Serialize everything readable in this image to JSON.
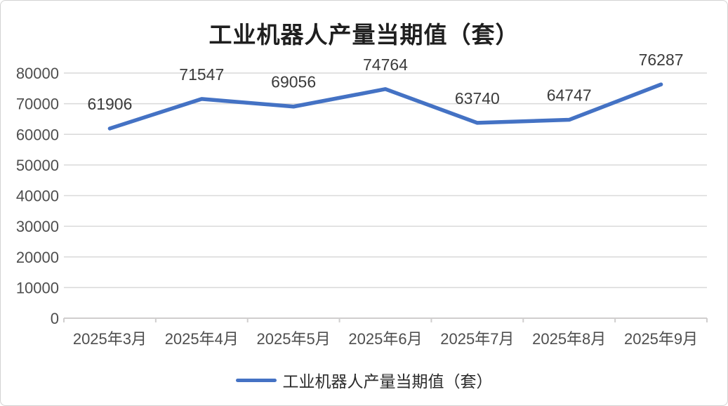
{
  "chart_data": {
    "type": "line",
    "title": "工业机器人产量当期值（套）",
    "categories": [
      "2025年3月",
      "2025年4月",
      "2025年5月",
      "2025年6月",
      "2025年7月",
      "2025年8月",
      "2025年9月"
    ],
    "series": [
      {
        "name": "工业机器人产量当期值（套）",
        "values": [
          61906,
          71547,
          69056,
          74764,
          63740,
          64747,
          76287
        ]
      }
    ],
    "data_labels": [
      "61906",
      "71547",
      "69056",
      "74764",
      "63740",
      "64747",
      "76287"
    ],
    "y_ticks": [
      0,
      10000,
      20000,
      30000,
      40000,
      50000,
      60000,
      70000,
      80000
    ],
    "ylim": [
      0,
      80000
    ],
    "xlabel": "",
    "ylabel": "",
    "grid": "horizontal",
    "legend_position": "bottom",
    "legend_entries": [
      "工业机器人产量当期值（套）"
    ],
    "colors": {
      "series_line": "#4472C4",
      "gridline": "#D9D9D9",
      "axis_line": "#D0CECE",
      "tick_text": "#4e4e4e",
      "data_label_text": "#3b3b3b",
      "title_text": "#1f1f1f",
      "background": "#FFFFFF"
    }
  }
}
